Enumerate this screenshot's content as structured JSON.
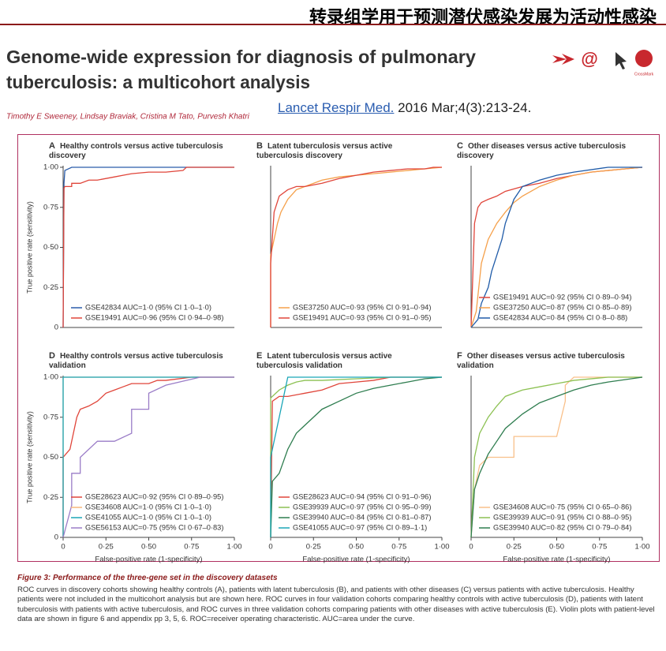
{
  "header": {
    "banner": "转录组学用于预测潜伏感染发展为活动性感染"
  },
  "paper": {
    "title": [
      "Genome-wide expression for diagnosis of pulmonary",
      "tuberculosis: a multicohort analysis"
    ],
    "authors": "Timothy E Sweeney, Lindsay Braviak, Cristina M Tato, Purvesh Khatri",
    "journal_link": "Lancet Respir Med.",
    "citation": "2016 Mar;4(3):213-24.",
    "crossmark": "CrossMark"
  },
  "figure": {
    "caption_title": "Figure 3: Performance of the three-gene set in the discovery datasets",
    "caption_text": "ROC curves in discovery cohorts showing healthy controls (A), patients with latent tuberculosis (B), and patients with other diseases (C) versus patients with active tuberculosis. Healthy patients were not included in the multicohort analysis but are shown here. ROC curves in four validation cohorts comparing healthy controls with active tuberculosis (D), patients with latent tuberculosis with patients with active tuberculosis, and ROC curves in three validation cohorts comparing patients with other diseases with active tuberculosis (E). Violin plots with patient-level data are shown in figure 6 and appendix pp 3, 5, 6. ROC=receiver operating characteristic. AUC=area under the curve."
  },
  "chart_data": [
    {
      "type": "line",
      "label": "A",
      "title": "Healthy controls versus active tuberculosis discovery",
      "ylabel": "True positive rate (sensitivity)",
      "xlim": [
        0,
        1
      ],
      "ylim": [
        0,
        1
      ],
      "yticks": [
        0,
        {
          "value": 0.25,
          "label": "0·25"
        },
        {
          "value": 0.5,
          "label": "0·50"
        },
        {
          "value": 0.75,
          "label": "0·75"
        },
        {
          "value": 1,
          "label": "1·00"
        }
      ],
      "legend": "lower right",
      "series": [
        {
          "name": "GSE42834 AUC=1·0 (95% CI 1·0–1·0)",
          "color": "#2a5caa",
          "x": [
            0,
            0.005,
            0.01,
            0.05,
            1
          ],
          "values": [
            0,
            0.9,
            0.98,
            1,
            1
          ]
        },
        {
          "name": "GSE19491 AUC=0·96 (95% CI 0·94–0·98)",
          "color": "#e0453a",
          "x": [
            0,
            0.005,
            0.01,
            0.05,
            0.05,
            0.1,
            0.15,
            0.2,
            0.3,
            0.35,
            0.4,
            0.5,
            0.6,
            0.7,
            0.72,
            1
          ],
          "values": [
            0,
            0.87,
            0.88,
            0.88,
            0.9,
            0.9,
            0.92,
            0.92,
            0.94,
            0.95,
            0.96,
            0.97,
            0.97,
            0.98,
            1,
            1
          ]
        }
      ]
    },
    {
      "type": "line",
      "label": "B",
      "title": "Latent tuberculosis versus active tuberculosis discovery",
      "xlim": [
        0,
        1
      ],
      "ylim": [
        0,
        1
      ],
      "legend": "lower right",
      "series": [
        {
          "name": "GSE37250 AUC=0·93 (95% CI 0·91–0·94)",
          "color": "#f5a04a",
          "x": [
            0,
            0,
            0.02,
            0.04,
            0.06,
            0.1,
            0.15,
            0.2,
            0.3,
            0.4,
            0.5,
            0.6,
            0.7,
            0.8,
            0.9,
            1
          ],
          "values": [
            0,
            0.45,
            0.55,
            0.65,
            0.72,
            0.8,
            0.86,
            0.88,
            0.92,
            0.94,
            0.95,
            0.96,
            0.97,
            0.98,
            0.99,
            1
          ]
        },
        {
          "name": "GSE19491 AUC=0·93 (95% CI 0·91–0·95)",
          "color": "#e0453a",
          "x": [
            0,
            0,
            0.02,
            0.05,
            0.1,
            0.15,
            0.2,
            0.3,
            0.4,
            0.5,
            0.6,
            0.7,
            0.8,
            0.9,
            0.95,
            1
          ],
          "values": [
            0,
            0.4,
            0.72,
            0.82,
            0.86,
            0.88,
            0.88,
            0.9,
            0.93,
            0.95,
            0.97,
            0.98,
            0.99,
            0.99,
            1,
            1
          ]
        }
      ]
    },
    {
      "type": "line",
      "label": "C",
      "title": "Other diseases versus active tuberculosis discovery",
      "xlim": [
        0,
        1
      ],
      "ylim": [
        0,
        1
      ],
      "legend": "lower right",
      "series": [
        {
          "name": "GSE19491 AUC=0·92 (95% CI 0·89–0·94)",
          "color": "#e0453a",
          "x": [
            0,
            0.02,
            0.04,
            0.06,
            0.1,
            0.15,
            0.2,
            0.3,
            0.4,
            0.5,
            0.6,
            0.7,
            0.8,
            0.9,
            1
          ],
          "values": [
            0,
            0.65,
            0.75,
            0.78,
            0.8,
            0.82,
            0.85,
            0.88,
            0.9,
            0.93,
            0.95,
            0.97,
            0.98,
            0.99,
            1
          ]
        },
        {
          "name": "GSE37250 AUC=0·87 (95% CI 0·85–0·89)",
          "color": "#f5a04a",
          "x": [
            0,
            0.03,
            0.06,
            0.1,
            0.15,
            0.2,
            0.25,
            0.3,
            0.4,
            0.5,
            0.6,
            0.7,
            0.8,
            0.9,
            1
          ],
          "values": [
            0,
            0.1,
            0.4,
            0.55,
            0.65,
            0.72,
            0.78,
            0.82,
            0.88,
            0.92,
            0.95,
            0.97,
            0.98,
            0.99,
            1
          ]
        },
        {
          "name": "GSE42834 AUC=0·84 (95% CI 0·8–0·88)",
          "color": "#1f5ba8",
          "x": [
            0,
            0.04,
            0.06,
            0.1,
            0.12,
            0.15,
            0.18,
            0.2,
            0.25,
            0.3,
            0.35,
            0.4,
            0.5,
            0.6,
            0.8,
            1
          ],
          "values": [
            0,
            0.05,
            0.15,
            0.25,
            0.35,
            0.45,
            0.55,
            0.65,
            0.8,
            0.88,
            0.9,
            0.92,
            0.95,
            0.97,
            1,
            1
          ]
        }
      ]
    },
    {
      "type": "line",
      "label": "D",
      "title": "Healthy controls versus active tuberculosis validation",
      "ylabel": "True positive rate (sensitivity)",
      "xlabel": "False-positive rate (1-specificity)",
      "xlim": [
        0,
        1
      ],
      "ylim": [
        0,
        1
      ],
      "yticks": [
        0,
        {
          "value": 0.25,
          "label": "0·25"
        },
        {
          "value": 0.5,
          "label": "0·50"
        },
        {
          "value": 0.75,
          "label": "0·75"
        },
        {
          "value": 1,
          "label": "1·00"
        }
      ],
      "xticks": [
        0,
        {
          "value": 0.25,
          "label": "0·25"
        },
        {
          "value": 0.5,
          "label": "0·50"
        },
        {
          "value": 0.75,
          "label": "0·75"
        },
        {
          "value": 1,
          "label": "1·00"
        }
      ],
      "legend": "lower right",
      "series": [
        {
          "name": "GSE28623 AUC=0·92 (95% CI 0·89–0·95)",
          "color": "#e0453a",
          "x": [
            0,
            0,
            0.04,
            0.08,
            0.1,
            0.15,
            0.2,
            0.25,
            0.3,
            0.35,
            0.4,
            0.5,
            0.55,
            0.6,
            0.75,
            1
          ],
          "values": [
            0,
            0.5,
            0.55,
            0.75,
            0.8,
            0.82,
            0.85,
            0.9,
            0.92,
            0.94,
            0.96,
            0.96,
            0.98,
            0.98,
            1,
            1
          ]
        },
        {
          "name": "GSE34608 AUC=1·0 (95% CI 1·0–1·0)",
          "color": "#f7b77a",
          "x": [
            0,
            0,
            1
          ],
          "values": [
            0,
            1,
            1
          ]
        },
        {
          "name": "GSE41055 AUC=1·0 (95% CI 1·0–1·0)",
          "color": "#1aa6b7",
          "x": [
            0,
            0,
            1
          ],
          "values": [
            0,
            1,
            1
          ]
        },
        {
          "name": "GSE56153 AUC=0·75 (95% CI 0·67–0·83)",
          "color": "#9a7cc7",
          "x": [
            0,
            0.05,
            0.05,
            0.1,
            0.1,
            0.2,
            0.3,
            0.4,
            0.4,
            0.5,
            0.5,
            0.6,
            0.8,
            1
          ],
          "values": [
            0,
            0.2,
            0.4,
            0.4,
            0.5,
            0.6,
            0.6,
            0.65,
            0.8,
            0.8,
            0.9,
            0.95,
            1,
            1
          ]
        }
      ]
    },
    {
      "type": "line",
      "label": "E",
      "title": "Latent tuberculosis versus active tuberculosis validation",
      "xlabel": "False-positive rate (1-specificity)",
      "xlim": [
        0,
        1
      ],
      "ylim": [
        0,
        1
      ],
      "xticks": [
        0,
        {
          "value": 0.25,
          "label": "0·25"
        },
        {
          "value": 0.5,
          "label": "0·50"
        },
        {
          "value": 0.75,
          "label": "0·75"
        },
        {
          "value": 1,
          "label": "1·00"
        }
      ],
      "legend": "lower right",
      "series": [
        {
          "name": "GSE28623 AUC=0·94 (95% CI 0·91–0·96)",
          "color": "#e0453a",
          "x": [
            0,
            0.01,
            0.05,
            0.1,
            0.2,
            0.3,
            0.4,
            0.5,
            0.6,
            0.7,
            1
          ],
          "values": [
            0,
            0.85,
            0.88,
            0.88,
            0.9,
            0.92,
            0.96,
            0.97,
            0.98,
            1,
            1
          ]
        },
        {
          "name": "GSE39939 AUC=0·97 (95% CI 0·95–0·99)",
          "color": "#8cc152",
          "x": [
            0,
            0,
            0.05,
            0.1,
            0.15,
            0.2,
            0.3,
            0.5,
            0.7,
            1
          ],
          "values": [
            0,
            0.87,
            0.92,
            0.95,
            0.97,
            0.98,
            0.98,
            0.99,
            1,
            1
          ]
        },
        {
          "name": "GSE39940 AUC=0·84 (95% CI 0·81–0·87)",
          "color": "#2e7d4f",
          "x": [
            0,
            0.01,
            0.05,
            0.1,
            0.15,
            0.2,
            0.3,
            0.4,
            0.5,
            0.6,
            0.7,
            0.8,
            0.9,
            1
          ],
          "values": [
            0,
            0.35,
            0.4,
            0.55,
            0.65,
            0.7,
            0.8,
            0.85,
            0.9,
            0.93,
            0.95,
            0.97,
            0.99,
            1
          ]
        },
        {
          "name": "GSE41055 AUC=0·97 (95% CI 0·89–1·1)",
          "color": "#1aa6b7",
          "x": [
            0,
            0,
            0.05,
            0.1,
            1
          ],
          "values": [
            0,
            0.5,
            0.75,
            1,
            1
          ]
        }
      ]
    },
    {
      "type": "line",
      "label": "F",
      "title": "Other diseases versus active tuberculosis validation",
      "xlabel": "False-positive rate (1-specificity)",
      "xlim": [
        0,
        1
      ],
      "ylim": [
        0,
        1
      ],
      "xticks": [
        0,
        {
          "value": 0.25,
          "label": "0·25"
        },
        {
          "value": 0.5,
          "label": "0·50"
        },
        {
          "value": 0.75,
          "label": "0·75"
        },
        {
          "value": 1,
          "label": "1·00"
        }
      ],
      "legend": "lower right",
      "series": [
        {
          "name": "GSE34608 AUC=0·75 (95% CI 0·65–0·86)",
          "color": "#f9c08a",
          "x": [
            0,
            0.02,
            0.05,
            0.1,
            0.25,
            0.25,
            0.5,
            0.55,
            0.55,
            0.6,
            1
          ],
          "values": [
            0,
            0.3,
            0.45,
            0.5,
            0.5,
            0.63,
            0.63,
            0.85,
            0.95,
            1,
            1
          ]
        },
        {
          "name": "GSE39939 AUC=0·91 (95% CI 0·88–0·95)",
          "color": "#8cc152",
          "x": [
            0,
            0.02,
            0.05,
            0.1,
            0.15,
            0.2,
            0.3,
            0.4,
            0.5,
            0.6,
            0.8,
            1
          ],
          "values": [
            0,
            0.5,
            0.65,
            0.75,
            0.82,
            0.88,
            0.92,
            0.94,
            0.96,
            0.98,
            1,
            1
          ]
        },
        {
          "name": "GSE39940 AUC=0·82 (95% CI 0·79–0·84)",
          "color": "#2e7d4f",
          "x": [
            0,
            0.02,
            0.05,
            0.1,
            0.15,
            0.2,
            0.3,
            0.4,
            0.5,
            0.6,
            0.7,
            0.8,
            1
          ],
          "values": [
            0,
            0.3,
            0.4,
            0.52,
            0.6,
            0.68,
            0.77,
            0.84,
            0.88,
            0.92,
            0.95,
            0.97,
            1
          ]
        }
      ]
    }
  ]
}
